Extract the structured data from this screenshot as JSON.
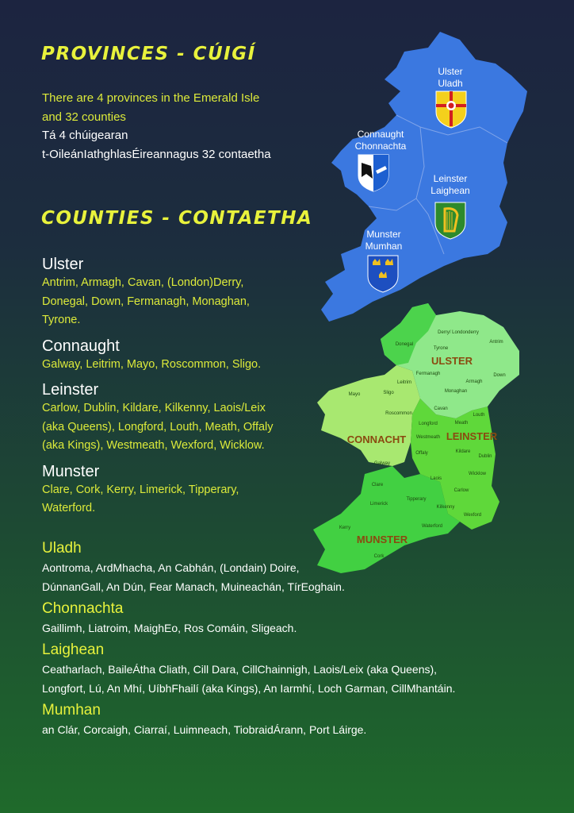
{
  "provinces_section": {
    "title": "Provinces - Cúigí",
    "intro_en_1": "There are 4 provinces in the Emerald Isle",
    "intro_en_2": "and 32 counties",
    "intro_ga_1": "Tá 4 chúigearan",
    "intro_ga_2": "t-OileánIathghlasÉireannagus 32 contaetha"
  },
  "counties_section": {
    "title": "Counties - Contaetha",
    "english": [
      {
        "province": "Ulster",
        "counties": "Antrim, Armagh, Cavan, (London)Derry, Donegal, Down, Fermanagh, Monaghan, Tyrone."
      },
      {
        "province": "Connaught",
        "counties": "Galway, Leitrim, Mayo, Roscommon, Sligo."
      },
      {
        "province": "Leinster",
        "counties": "Carlow, Dublin, Kildare, Kilkenny, Laois/Leix (aka Queens), Longford, Louth, Meath, Offaly (aka Kings), Westmeath, Wexford, Wicklow."
      },
      {
        "province": "Munster",
        "counties": "Clare, Cork, Kerry, Limerick, Tipperary, Waterford."
      }
    ],
    "irish": [
      {
        "province": "Uladh",
        "counties_1": "Aontroma, ArdMhacha, An Cabhán, (Londain) Doire,",
        "counties_2": "DúnnanGall, An Dún, Fear Manach, Muineachán, TírEoghain."
      },
      {
        "province": "Chonnachta",
        "counties_1": "Gaillimh, Liatroim, MaighEo, Ros Comáin, Sligeach."
      },
      {
        "province": "Laighean",
        "counties_1": "Ceatharlach, BaileÁtha Cliath, Cill Dara, CillChainnigh, Laois/Leix (aka Queens),",
        "counties_2": "Longfort, Lú, An Mhí, UíbhFhailí (aka Kings), An Iarmhí, Loch Garman, CillMhantáin."
      },
      {
        "province": "Mumhan",
        "counties_1": "an Clár, Corcaigh, Ciarraí, Luimneach, TiobraidÁrann, Port Láirge."
      }
    ]
  },
  "province_map": {
    "color": "#3b78e0",
    "labels": {
      "ulster_en": "Ulster",
      "ulster_ga": "Uladh",
      "connaught_en": "Connaught",
      "connaught_ga": "Chonnachta",
      "leinster_en": "Leinster",
      "leinster_ga": "Laighean",
      "munster_en": "Munster",
      "munster_ga": "Mumhan"
    },
    "shields": [
      "red-hand-shield-icon",
      "eagle-arm-shield-icon",
      "harp-shield-icon",
      "three-crowns-shield-icon"
    ]
  },
  "county_map": {
    "colors": {
      "ulster": "#8fe88a",
      "connacht": "#a8e870",
      "leinster": "#5fd83a",
      "munster": "#42d042"
    },
    "province_labels": {
      "ulster": "ULSTER",
      "connacht": "CONNACHT",
      "leinster": "LEINSTER",
      "munster": "MUNSTER"
    },
    "county_labels": [
      "Donegal",
      "Derry/ Londonderry",
      "Antrim",
      "Tyrone",
      "Down",
      "Fermanagh",
      "Armagh",
      "Monaghan",
      "Leitrim",
      "Mayo",
      "Sligo",
      "Roscommon",
      "Cavan",
      "Longford",
      "Louth",
      "Meath",
      "Westmeath",
      "Dublin",
      "Offaly",
      "Kildare",
      "Galway",
      "Laois",
      "Wicklow",
      "Clare",
      "Tipperary",
      "Carlow",
      "Limerick",
      "Kilkenny",
      "Wexford",
      "Kerry",
      "Waterford",
      "Cork"
    ]
  }
}
